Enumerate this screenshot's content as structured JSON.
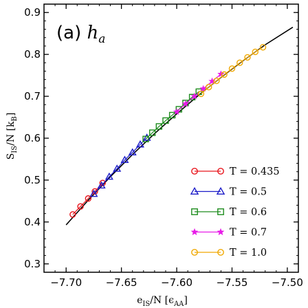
{
  "chart_data": {
    "type": "scatter",
    "panel_label": "(a) h",
    "panel_label_sub": "a",
    "xlabel": "e_IS/N [ε_AA]",
    "ylabel": "S_IS/N [k_B]",
    "xlim": [
      -7.72,
      -7.49
    ],
    "ylim": [
      0.28,
      0.92
    ],
    "x_ticks": [
      -7.7,
      -7.65,
      -7.6,
      -7.55,
      -7.5
    ],
    "x_tick_labels": [
      "−7.70",
      "−7.65",
      "−7.60",
      "−7.55",
      "−7.50"
    ],
    "y_ticks": [
      0.3,
      0.4,
      0.5,
      0.6,
      0.7,
      0.8,
      0.9
    ],
    "y_tick_labels": [
      "0.3",
      "0.4",
      "0.5",
      "0.6",
      "0.7",
      "0.8",
      "0.9"
    ],
    "grid": false,
    "legend_position": "bottom-right",
    "fit_line": {
      "x": [
        -7.7,
        -7.68,
        -7.66,
        -7.64,
        -7.62,
        -7.6,
        -7.58,
        -7.56,
        -7.54,
        -7.52,
        -7.495
      ],
      "y": [
        0.393,
        0.452,
        0.508,
        0.561,
        0.611,
        0.658,
        0.703,
        0.745,
        0.785,
        0.823,
        0.865
      ]
    },
    "series": [
      {
        "name": "T = 0.435",
        "marker": "circle",
        "color": "#e8141c",
        "x": [
          -7.694,
          -7.687,
          -7.68,
          -7.674,
          -7.667
        ],
        "y": [
          0.418,
          0.437,
          0.456,
          0.473,
          0.493
        ]
      },
      {
        "name": "T = 0.5",
        "marker": "triangle",
        "color": "#1c1cc8",
        "x": [
          -7.675,
          -7.668,
          -7.661,
          -7.654,
          -7.647,
          -7.64,
          -7.633,
          -7.627
        ],
        "y": [
          0.467,
          0.487,
          0.508,
          0.527,
          0.548,
          0.566,
          0.585,
          0.601
        ]
      },
      {
        "name": "T = 0.6",
        "marker": "square",
        "color": "#1e8c1e",
        "x": [
          -7.628,
          -7.622,
          -7.616,
          -7.61,
          -7.604,
          -7.598,
          -7.592,
          -7.586,
          -7.58
        ],
        "y": [
          0.598,
          0.613,
          0.628,
          0.642,
          0.655,
          0.669,
          0.684,
          0.698,
          0.711
        ]
      },
      {
        "name": "T = 0.7",
        "marker": "star",
        "color": "#e81ce8",
        "x": [
          -7.6,
          -7.592,
          -7.584,
          -7.576,
          -7.568,
          -7.56
        ],
        "y": [
          0.663,
          0.682,
          0.7,
          0.718,
          0.736,
          0.753
        ]
      },
      {
        "name": "T = 1.0",
        "marker": "circle",
        "color": "#f0a800",
        "x": [
          -7.578,
          -7.571,
          -7.564,
          -7.557,
          -7.55,
          -7.543,
          -7.536,
          -7.529,
          -7.522
        ],
        "y": [
          0.706,
          0.722,
          0.737,
          0.752,
          0.766,
          0.78,
          0.793,
          0.806,
          0.817
        ]
      }
    ]
  }
}
